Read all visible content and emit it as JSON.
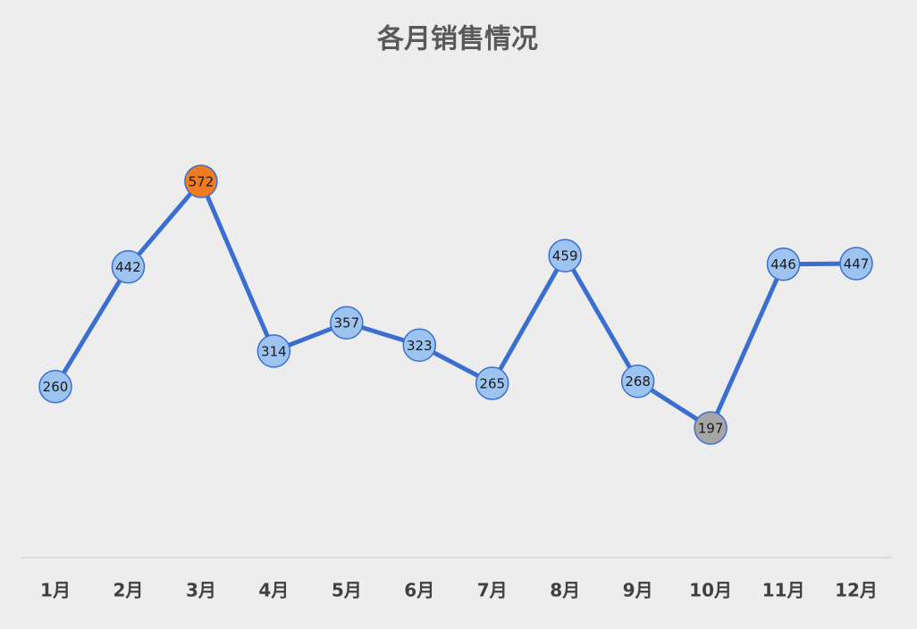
{
  "chart_data": {
    "type": "line",
    "title": "各月销售情况",
    "categories": [
      "1月",
      "2月",
      "3月",
      "4月",
      "5月",
      "6月",
      "7月",
      "8月",
      "9月",
      "10月",
      "11月",
      "12月"
    ],
    "values": [
      260,
      442,
      572,
      314,
      357,
      323,
      265,
      459,
      268,
      197,
      446,
      447
    ],
    "color": "#3a6fd0",
    "marker_color": "#9dc3f0",
    "max_color": "#f07c22",
    "min_color": "#a6a6a6"
  }
}
